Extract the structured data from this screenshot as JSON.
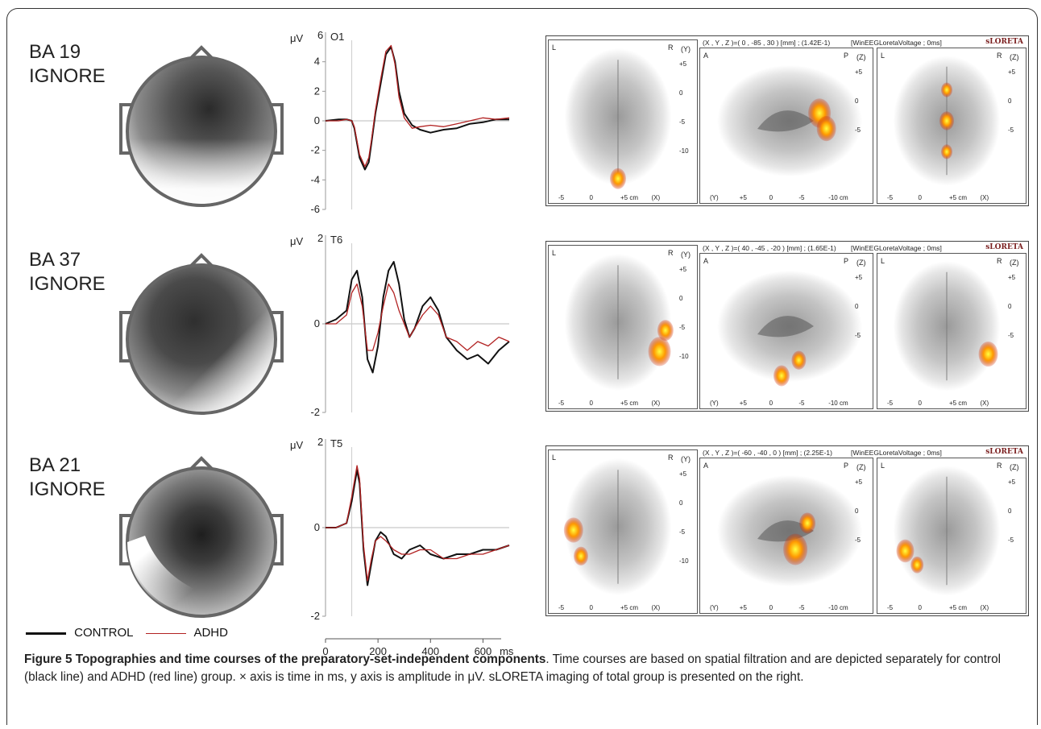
{
  "rows": [
    {
      "label_line1": "BA 19",
      "label_line2": "IGNORE",
      "channel": "O1",
      "unit": "μV",
      "ymax_label": "6",
      "ytick_labels": [
        "4",
        "2",
        "0",
        "-2",
        "-4",
        "-6"
      ],
      "sloreta_header": "(X , Y , Z )=( 0 , -85 , 30 ) [mm] ;  (1.42E-1)",
      "sloreta_source": "[WinEEGLoretaVoltage ; 0ms]",
      "sloreta_brand": "sLORETA"
    },
    {
      "label_line1": "BA 37",
      "label_line2": "IGNORE",
      "channel": "T6",
      "unit": "μV",
      "ymax_label": "2",
      "ytick_labels": [
        "0",
        "-2"
      ],
      "sloreta_header": "(X , Y , Z )=( 40 , -45 , -20 ) [mm] ;  (1.65E-1)",
      "sloreta_source": "[WinEEGLoretaVoltage ; 0ms]",
      "sloreta_brand": "sLORETA"
    },
    {
      "label_line1": "BA 21",
      "label_line2": "IGNORE",
      "channel": "T5",
      "unit": "μV",
      "ymax_label": "2",
      "ytick_labels": [
        "0",
        "-2"
      ],
      "sloreta_header": "(X , Y , Z )=( -60 , -40 , 0 ) [mm] ;  (2.25E-1)",
      "sloreta_source": "[WinEEGLoretaVoltage ; 0ms]",
      "sloreta_brand": "sLORETA"
    }
  ],
  "xaxis": {
    "tick_labels": [
      "0",
      "200",
      "400",
      "600"
    ],
    "unit": "ms"
  },
  "legend": {
    "control": "CONTROL",
    "adhd": "ADHD",
    "control_color": "#111111",
    "adhd_color": "#b22222"
  },
  "panel_axes": {
    "axial": {
      "left": "L",
      "right": "R",
      "axis": "(Y)",
      "ticks": [
        "+5",
        "0",
        "-5",
        "-10"
      ],
      "bottom": [
        "-5",
        "0",
        "+5 cm",
        "(X)"
      ]
    },
    "sagittal": {
      "left": "A",
      "right": "P",
      "axis": "(Z)",
      "ticks": [
        "+5",
        "0",
        "-5"
      ],
      "bottom": [
        "(Y)",
        "+5",
        "0",
        "-5",
        "-10 cm"
      ]
    },
    "coronal": {
      "left": "L",
      "right": "R",
      "axis": "(Z)",
      "ticks": [
        "+5",
        "0",
        "-5"
      ],
      "bottom": [
        "-5",
        "0",
        "+5 cm",
        "(X)"
      ]
    }
  },
  "caption": {
    "bold": "Figure 5 Topographies and time courses of the preparatory-set-independent components",
    "text": ". Time courses are based on spatial filtration and are depicted separately for control (black line) and ADHD (red line) group. × axis is time in ms, y axis is amplitude in μV. sLORETA imaging of total group is presented on the right."
  },
  "chart_data": [
    {
      "type": "line",
      "title": "O1",
      "xlabel": "ms",
      "ylabel": "μV",
      "ylim": [
        -6,
        6
      ],
      "xlim": [
        0,
        700
      ],
      "series": [
        {
          "name": "CONTROL",
          "x": [
            0,
            50,
            80,
            100,
            110,
            130,
            150,
            165,
            175,
            190,
            210,
            230,
            250,
            265,
            280,
            300,
            330,
            360,
            400,
            450,
            500,
            550,
            600,
            650,
            700
          ],
          "values": [
            0,
            0.1,
            0.1,
            0,
            -0.5,
            -2.5,
            -3.3,
            -2.8,
            -1.5,
            0.5,
            2.5,
            4.5,
            5.0,
            4.0,
            2.0,
            0.5,
            -0.3,
            -0.6,
            -0.8,
            -0.6,
            -0.5,
            -0.2,
            -0.1,
            0.1,
            0.1
          ]
        },
        {
          "name": "ADHD",
          "x": [
            0,
            50,
            80,
            100,
            110,
            130,
            150,
            165,
            175,
            190,
            210,
            230,
            250,
            265,
            280,
            300,
            330,
            360,
            400,
            450,
            500,
            550,
            600,
            650,
            700
          ],
          "values": [
            0,
            0,
            0.1,
            0,
            -0.4,
            -2.3,
            -3.1,
            -2.5,
            -1.3,
            0.7,
            2.8,
            4.7,
            5.1,
            3.8,
            1.6,
            0.2,
            -0.5,
            -0.4,
            -0.3,
            -0.4,
            -0.2,
            0,
            0.2,
            0.1,
            0.2
          ]
        }
      ]
    },
    {
      "type": "line",
      "title": "T6",
      "xlabel": "ms",
      "ylabel": "μV",
      "ylim": [
        -2,
        2
      ],
      "xlim": [
        0,
        700
      ],
      "series": [
        {
          "name": "CONTROL",
          "x": [
            0,
            40,
            80,
            100,
            120,
            140,
            160,
            180,
            200,
            220,
            240,
            260,
            280,
            300,
            320,
            340,
            370,
            400,
            430,
            460,
            500,
            540,
            580,
            620,
            660,
            700
          ],
          "values": [
            0,
            0.1,
            0.3,
            1.0,
            1.2,
            0.6,
            -0.8,
            -1.1,
            -0.5,
            0.6,
            1.2,
            1.4,
            0.9,
            0.1,
            -0.3,
            -0.1,
            0.4,
            0.6,
            0.3,
            -0.3,
            -0.6,
            -0.8,
            -0.7,
            -0.9,
            -0.6,
            -0.4
          ]
        },
        {
          "name": "ADHD",
          "x": [
            0,
            40,
            80,
            100,
            120,
            140,
            160,
            180,
            200,
            220,
            240,
            260,
            280,
            300,
            320,
            340,
            370,
            400,
            430,
            460,
            500,
            540,
            580,
            620,
            660,
            700
          ],
          "values": [
            0,
            0,
            0.2,
            0.7,
            0.9,
            0.4,
            -0.6,
            -0.6,
            -0.2,
            0.4,
            0.9,
            0.7,
            0.3,
            0,
            -0.3,
            -0.1,
            0.2,
            0.4,
            0.2,
            -0.3,
            -0.4,
            -0.6,
            -0.4,
            -0.5,
            -0.3,
            -0.4
          ]
        }
      ]
    },
    {
      "type": "line",
      "title": "T5",
      "xlabel": "ms",
      "ylabel": "μV",
      "ylim": [
        -2,
        2
      ],
      "xlim": [
        0,
        700
      ],
      "series": [
        {
          "name": "CONTROL",
          "x": [
            0,
            40,
            80,
            100,
            120,
            130,
            145,
            160,
            175,
            190,
            210,
            230,
            260,
            290,
            320,
            360,
            400,
            450,
            500,
            550,
            600,
            650,
            700
          ],
          "values": [
            0,
            0,
            0.1,
            0.6,
            1.3,
            1.0,
            -0.5,
            -1.3,
            -0.8,
            -0.3,
            -0.1,
            -0.2,
            -0.6,
            -0.7,
            -0.5,
            -0.4,
            -0.6,
            -0.7,
            -0.6,
            -0.6,
            -0.5,
            -0.5,
            -0.4
          ]
        },
        {
          "name": "ADHD",
          "x": [
            0,
            40,
            80,
            100,
            120,
            130,
            145,
            160,
            175,
            190,
            210,
            230,
            260,
            290,
            320,
            360,
            400,
            450,
            500,
            550,
            600,
            650,
            700
          ],
          "values": [
            0,
            0,
            0.1,
            0.7,
            1.4,
            1.1,
            -0.4,
            -1.2,
            -0.7,
            -0.3,
            -0.2,
            -0.3,
            -0.5,
            -0.6,
            -0.6,
            -0.5,
            -0.5,
            -0.7,
            -0.7,
            -0.6,
            -0.6,
            -0.5,
            -0.4
          ]
        }
      ]
    }
  ]
}
